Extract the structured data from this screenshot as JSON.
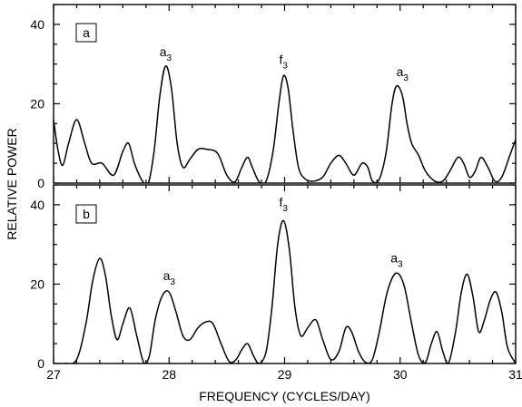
{
  "chart_data": [
    {
      "type": "line",
      "panel": "a",
      "xlabel": "FREQUENCY (CYCLES/DAY)",
      "ylabel": "RELATIVE POWER",
      "xlim": [
        27,
        31
      ],
      "ylim": [
        0,
        45
      ],
      "x_ticks": [
        27,
        28,
        29,
        30,
        31
      ],
      "x_tick_labels": [
        "27",
        "28",
        "29",
        "30",
        "31"
      ],
      "y_ticks": [
        0,
        20,
        40
      ],
      "y_tick_labels": [
        "0",
        "20",
        "40"
      ],
      "grid": false,
      "series": [
        {
          "x": [
            27.0,
            27.04,
            27.08,
            27.13,
            27.2,
            27.27,
            27.33,
            27.42,
            27.52,
            27.6,
            27.65,
            27.7,
            27.77,
            27.82,
            27.87,
            27.92,
            27.97,
            28.02,
            28.07,
            28.12,
            28.18,
            28.25,
            28.33,
            28.42,
            28.5,
            28.57,
            28.63,
            28.68,
            28.72,
            28.78,
            28.84,
            28.9,
            28.95,
            28.99,
            29.03,
            29.07,
            29.12,
            29.18,
            29.25,
            29.33,
            29.4,
            29.47,
            29.53,
            29.6,
            29.67,
            29.72,
            29.76,
            29.82,
            29.88,
            29.93,
            29.97,
            30.02,
            30.06,
            30.1,
            30.16,
            30.22,
            30.3,
            30.37,
            30.43,
            30.5,
            30.55,
            30.6,
            30.65,
            30.7,
            30.76,
            30.82,
            30.88,
            30.95,
            31.0
          ],
          "y": [
            16,
            8,
            4.5,
            10,
            16,
            10,
            5,
            5,
            2,
            8,
            10,
            5,
            0.5,
            0,
            8,
            22,
            29.5,
            24,
            10,
            4,
            6,
            8.5,
            8.5,
            7.5,
            2,
            0.3,
            4,
            6.5,
            4,
            0.3,
            0.5,
            8,
            20,
            27,
            24,
            14,
            4,
            1,
            0.5,
            1.5,
            5,
            7,
            5,
            2,
            5,
            4,
            0.5,
            1,
            8,
            20,
            24.5,
            22,
            15,
            10,
            7,
            3,
            0.5,
            0.5,
            3,
            6.5,
            5,
            1.5,
            3,
            6.5,
            4,
            0.5,
            1.5,
            7,
            11
          ]
        }
      ],
      "annotations": [
        {
          "text": "a",
          "sub": "3",
          "x": 27.97,
          "y": 32
        },
        {
          "text": "f",
          "sub": "3",
          "x": 28.99,
          "y": 30
        },
        {
          "text": "a",
          "sub": "3",
          "x": 30.02,
          "y": 27
        }
      ]
    },
    {
      "type": "line",
      "panel": "b",
      "xlabel": "FREQUENCY (CYCLES/DAY)",
      "ylabel": "RELATIVE POWER",
      "xlim": [
        27,
        31
      ],
      "ylim": [
        0,
        45
      ],
      "x_ticks": [
        27,
        28,
        29,
        30,
        31
      ],
      "x_tick_labels": [
        "27",
        "28",
        "29",
        "30",
        "31"
      ],
      "y_ticks": [
        0,
        20,
        40
      ],
      "y_tick_labels": [
        "0",
        "20",
        "40"
      ],
      "grid": false,
      "series": [
        {
          "x": [
            27.0,
            27.1,
            27.2,
            27.28,
            27.34,
            27.4,
            27.45,
            27.5,
            27.55,
            27.6,
            27.66,
            27.72,
            27.78,
            27.83,
            27.88,
            27.94,
            28.0,
            28.06,
            28.12,
            28.18,
            28.25,
            28.32,
            28.38,
            28.45,
            28.52,
            28.58,
            28.63,
            28.68,
            28.73,
            28.78,
            28.84,
            28.89,
            28.94,
            28.99,
            29.04,
            29.09,
            29.14,
            29.2,
            29.27,
            29.33,
            29.4,
            29.47,
            29.53,
            29.58,
            29.64,
            29.7,
            29.76,
            29.82,
            29.88,
            29.94,
            29.99,
            30.04,
            30.1,
            30.16,
            30.22,
            30.27,
            30.32,
            30.37,
            30.42,
            30.48,
            30.53,
            30.58,
            30.63,
            30.68,
            30.73,
            30.78,
            30.83,
            30.88,
            30.93,
            31.0
          ],
          "y": [
            0,
            0,
            1,
            10,
            21,
            26.5,
            22,
            12,
            6,
            10,
            14,
            7,
            0.3,
            2,
            11,
            17,
            18,
            13,
            7,
            6,
            9,
            10.5,
            10,
            5,
            0.5,
            1,
            3.5,
            5,
            2,
            0,
            3,
            14,
            30,
            36,
            29,
            14,
            7,
            9,
            11,
            6,
            1,
            3,
            9,
            8,
            3,
            0.3,
            1,
            8,
            17,
            22,
            22.5,
            19,
            10,
            2,
            0.3,
            5,
            8,
            3,
            0.2,
            8,
            18,
            22.5,
            17,
            8,
            11,
            16,
            18,
            13,
            4,
            0
          ]
        }
      ],
      "annotations": [
        {
          "text": "a",
          "sub": "3",
          "x": 28.0,
          "y": 21
        },
        {
          "text": "f",
          "sub": "3",
          "x": 28.99,
          "y": 39.5
        },
        {
          "text": "a",
          "sub": "3",
          "x": 29.97,
          "y": 25.5
        }
      ]
    }
  ]
}
